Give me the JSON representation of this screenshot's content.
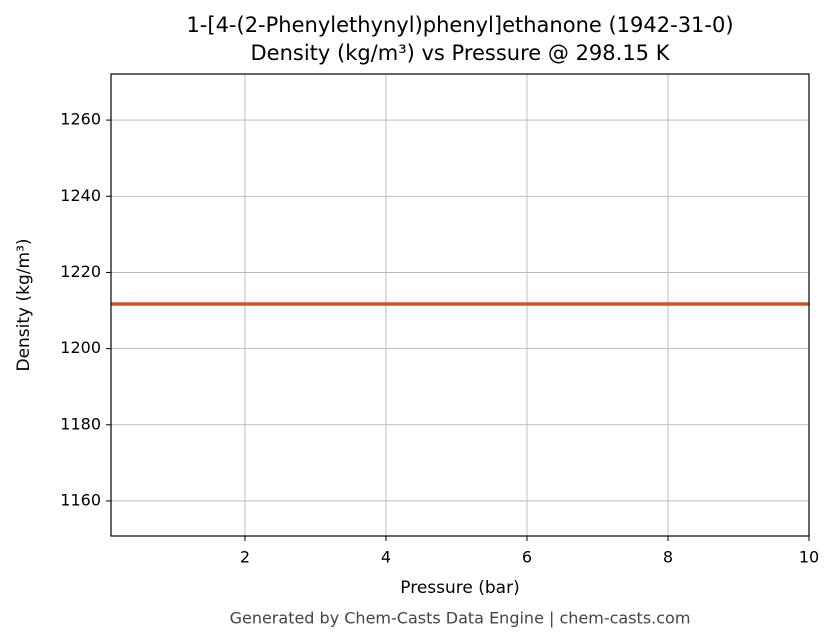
{
  "chart_data": {
    "type": "line",
    "title": "1-[4-(2-Phenylethynyl)phenyl]ethanone (1942-31-0)",
    "subtitle": "Density (kg/m³) vs Pressure @ 298.15 K",
    "x_label": "Pressure (bar)",
    "y_label": "Density (kg/m³)",
    "footer": "Generated by Chem-Casts Data Engine | chem-casts.com",
    "x": [
      0.1,
      10
    ],
    "series": [
      {
        "name": "Density",
        "color": "#c8552b",
        "values": [
          1211.7,
          1211.7
        ]
      }
    ],
    "xlim": [
      0.1,
      10
    ],
    "xticks": [
      2,
      4,
      6,
      8,
      10
    ],
    "ylim": [
      1150.8,
      1272.1
    ],
    "yticks": [
      1160,
      1180,
      1200,
      1220,
      1240,
      1260
    ],
    "grid": true
  }
}
